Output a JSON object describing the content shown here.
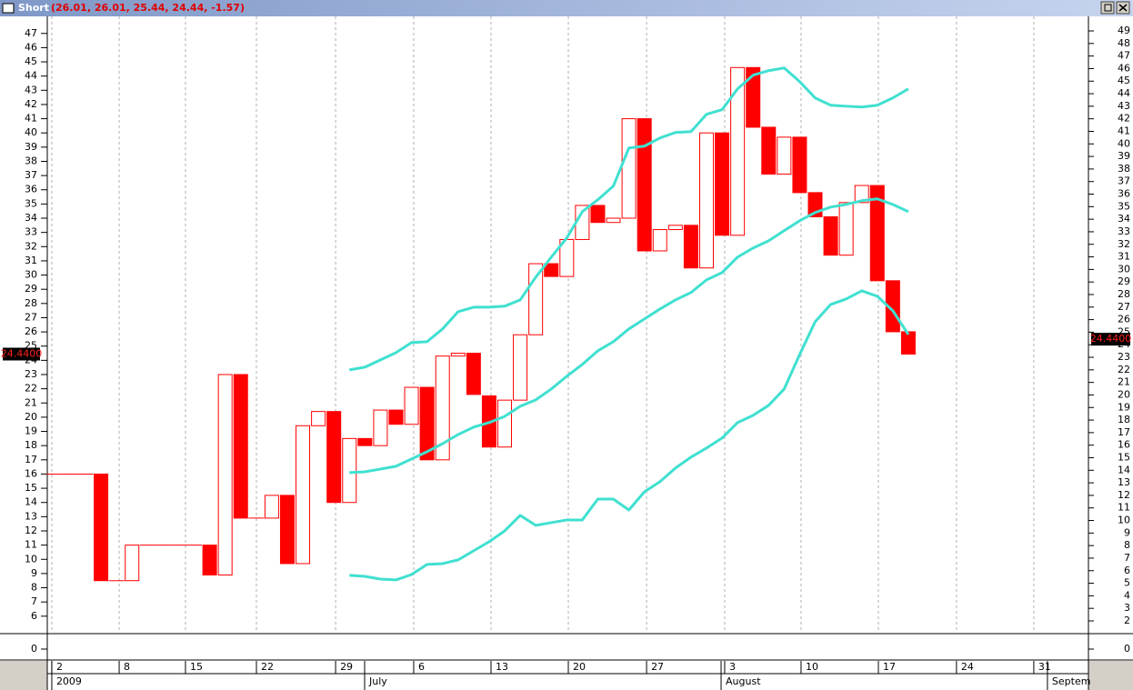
{
  "window": {
    "title": "Short",
    "info": "(26.01, 26.01, 25.44, 24.44, -1.57)"
  },
  "chart_data": {
    "type": "candlestick",
    "open": [
      16,
      16,
      16,
      16,
      8.5,
      8.5,
      11,
      11,
      11,
      11,
      11,
      8.9,
      23,
      12.9,
      12.9,
      14.5,
      9.7,
      19.4,
      20.4,
      14,
      18.5,
      18,
      20.5,
      19.5,
      22.1,
      17,
      24.3,
      24.5,
      21.5,
      17.9,
      21.2,
      25.8,
      30.8,
      29.9,
      32.5,
      34.9,
      33.7,
      34,
      41,
      31.7,
      33.2,
      33.5,
      30.5,
      40,
      32.8,
      44.6,
      40.4,
      37.1,
      39.7,
      35.8,
      34.1,
      31.4,
      35.1,
      36.3,
      29.6,
      26.01
    ],
    "close": [
      16,
      16,
      16,
      8.5,
      8.5,
      11,
      11,
      11,
      11,
      11,
      8.9,
      23,
      12.9,
      12.9,
      14.5,
      9.7,
      19.4,
      20.4,
      14,
      18.5,
      18,
      20.5,
      19.5,
      22.1,
      17,
      24.3,
      24.5,
      21.6,
      17.9,
      21.2,
      25.8,
      30.8,
      29.9,
      32.5,
      34.9,
      33.7,
      34,
      41,
      31.7,
      33.2,
      33.5,
      30.5,
      40,
      32.8,
      44.6,
      40.4,
      37.1,
      39.7,
      35.8,
      34.1,
      31.4,
      35.1,
      36.3,
      29.6,
      26.01,
      24.44
    ],
    "up_color": "#ffffff",
    "down_color": "#ff0000",
    "edge_color": "#ff0000",
    "last_label": "24.4400",
    "series": [
      {
        "color": "#40e0d0",
        "values": [
          null,
          null,
          null,
          null,
          null,
          null,
          null,
          null,
          null,
          null,
          null,
          null,
          null,
          null,
          null,
          null,
          null,
          null,
          null,
          23.33,
          23.52,
          24.03,
          24.54,
          25.25,
          25.31,
          26.21,
          27.42,
          27.74,
          27.74,
          27.81,
          28.25,
          29.85,
          31.26,
          32.61,
          34.46,
          35.3,
          36.26,
          38.94,
          39.07,
          39.64,
          40.03,
          40.09,
          41.31,
          41.63,
          43.1,
          44.06,
          44.38,
          44.57,
          43.61,
          42.46,
          41.95,
          41.88,
          41.82,
          41.95,
          42.46,
          43.1
        ]
      },
      {
        "color": "#40e0d0",
        "values": [
          null,
          null,
          null,
          null,
          null,
          null,
          null,
          null,
          null,
          null,
          null,
          null,
          null,
          null,
          null,
          null,
          null,
          null,
          null,
          16.1,
          16.16,
          16.35,
          16.55,
          17.06,
          17.57,
          18.14,
          18.78,
          19.3,
          19.62,
          20.06,
          20.77,
          21.22,
          21.98,
          22.88,
          23.71,
          24.67,
          25.31,
          26.21,
          26.91,
          27.61,
          28.25,
          28.77,
          29.66,
          30.17,
          31.26,
          31.9,
          32.41,
          33.12,
          33.82,
          34.4,
          34.78,
          34.97,
          35.23,
          35.36,
          34.97,
          34.46
        ]
      },
      {
        "color": "#40e0d0",
        "values": [
          null,
          null,
          null,
          null,
          null,
          null,
          null,
          null,
          null,
          null,
          null,
          null,
          null,
          null,
          null,
          null,
          null,
          null,
          null,
          8.87,
          8.8,
          8.61,
          8.55,
          8.93,
          9.64,
          9.7,
          9.96,
          10.6,
          11.24,
          12.0,
          13.09,
          12.39,
          12.58,
          12.77,
          12.77,
          14.24,
          14.24,
          13.47,
          14.75,
          15.46,
          16.42,
          17.19,
          17.83,
          18.53,
          19.62,
          20.13,
          20.83,
          21.98,
          24.41,
          26.72,
          27.93,
          28.32,
          28.89,
          28.51,
          27.49,
          25.82
        ]
      }
    ],
    "xlim": [
      -0.46,
      66.6
    ],
    "xticks": [
      {
        "value": -0.17,
        "label": "2"
      },
      {
        "value": 4.17,
        "label": "8"
      },
      {
        "value": 8.44,
        "label": "15"
      },
      {
        "value": 13.01,
        "label": "22"
      },
      {
        "value": 18.11,
        "label": "29"
      },
      {
        "value": 23.14,
        "label": "6"
      },
      {
        "value": 28.12,
        "label": "13"
      },
      {
        "value": 33.1,
        "label": "20"
      },
      {
        "value": 38.14,
        "label": "27"
      },
      {
        "value": 43.17,
        "label": "3"
      },
      {
        "value": 48.09,
        "label": "10"
      },
      {
        "value": 53.07,
        "label": "17"
      },
      {
        "value": 58.1,
        "label": "24"
      },
      {
        "value": 63.08,
        "label": "31"
      }
    ],
    "month_ticks": [
      {
        "value": -0.17,
        "label": "2009"
      },
      {
        "value": 19.98,
        "label": "July"
      },
      {
        "value": 42.94,
        "label": "August"
      },
      {
        "value": 63.96,
        "label": "Septem"
      }
    ],
    "ylim": [
      4.9,
      48.2
    ],
    "yticks": [
      6,
      7,
      8,
      9,
      10,
      11,
      12,
      13,
      14,
      15,
      16,
      17,
      18,
      19,
      20,
      21,
      22,
      23,
      24,
      25,
      26,
      27,
      28,
      29,
      30,
      31,
      32,
      33,
      34,
      35,
      36,
      37,
      38,
      39,
      40,
      41,
      42,
      43,
      44,
      45,
      46,
      47
    ],
    "y2lim": [
      1.13,
      50.16
    ],
    "y2ticks": [
      2,
      3,
      4,
      5,
      6,
      7,
      8,
      9,
      10,
      11,
      12,
      13,
      14,
      15,
      16,
      17,
      18,
      19,
      20,
      21,
      22,
      23,
      24,
      25,
      26,
      27,
      28,
      29,
      30,
      31,
      32,
      33,
      34,
      35,
      36,
      37,
      38,
      39,
      40,
      41,
      42,
      43,
      44,
      45,
      46,
      47,
      48,
      49
    ],
    "volume_yticks": [
      0
    ],
    "grid": true
  }
}
